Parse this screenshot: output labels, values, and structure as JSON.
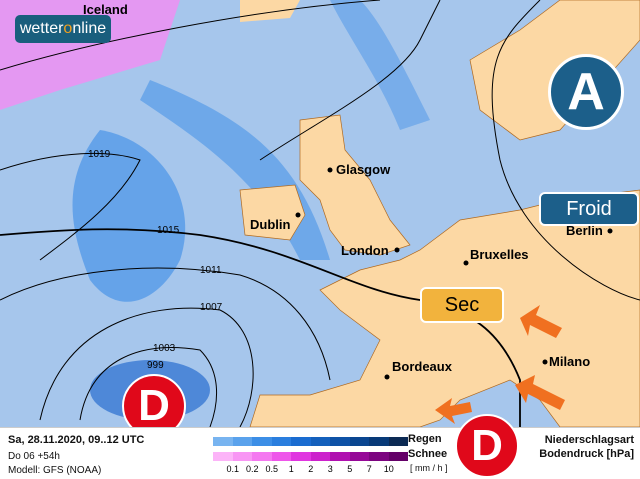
{
  "logo": {
    "part1": "wetter",
    "part2": "o",
    "part3": "nline"
  },
  "cities": {
    "iceland": "Iceland",
    "glasgow": "Glasgow",
    "dublin": "Dublin",
    "london": "London",
    "bruxelles": "Bruxelles",
    "berlin": "Berlin",
    "bordeaux": "Bordeaux",
    "milano": "Milano"
  },
  "isobars": [
    "1019",
    "1015",
    "1011",
    "1007",
    "1003",
    "999"
  ],
  "pressure_systems": {
    "high": "A",
    "low1": "D",
    "low2": "D"
  },
  "labels": {
    "froid": "Froid",
    "sec": "Sec"
  },
  "colors": {
    "high": "#1c5f8a",
    "low": "#e0081a",
    "froid": "#1c5f8a",
    "sec": "#f2b33d",
    "arrow": "#f07020",
    "land": "#fcd8a4",
    "sea": "#a6c6ec"
  },
  "legend": {
    "date": "Sa, 28.11.2020, 09..12 UTC",
    "run": "Do 06 +54h",
    "model": "Modell: GFS (NOAA)",
    "rain_label": "Regen",
    "snow_label": "Schnee",
    "unit": "[ mm / h ]",
    "type_label": "Niederschlagsart",
    "pressure_label": "Bodendruck [hPa]",
    "ticks": [
      "0.1",
      "0.2",
      "0.5",
      "1",
      "2",
      "3",
      "5",
      "7",
      "10"
    ],
    "rain_colors": [
      "#78b4f0",
      "#5aa2ec",
      "#3c8ee6",
      "#2a7ede",
      "#1a6cd0",
      "#1460bc",
      "#0e52a6",
      "#0a4690",
      "#083a78",
      "#0c2a54"
    ],
    "snow_colors": [
      "#fcb4f8",
      "#f896f4",
      "#f478f0",
      "#ee56ea",
      "#e036e0",
      "#cc22cc",
      "#b010b0",
      "#960898",
      "#7c0480",
      "#640068"
    ]
  }
}
